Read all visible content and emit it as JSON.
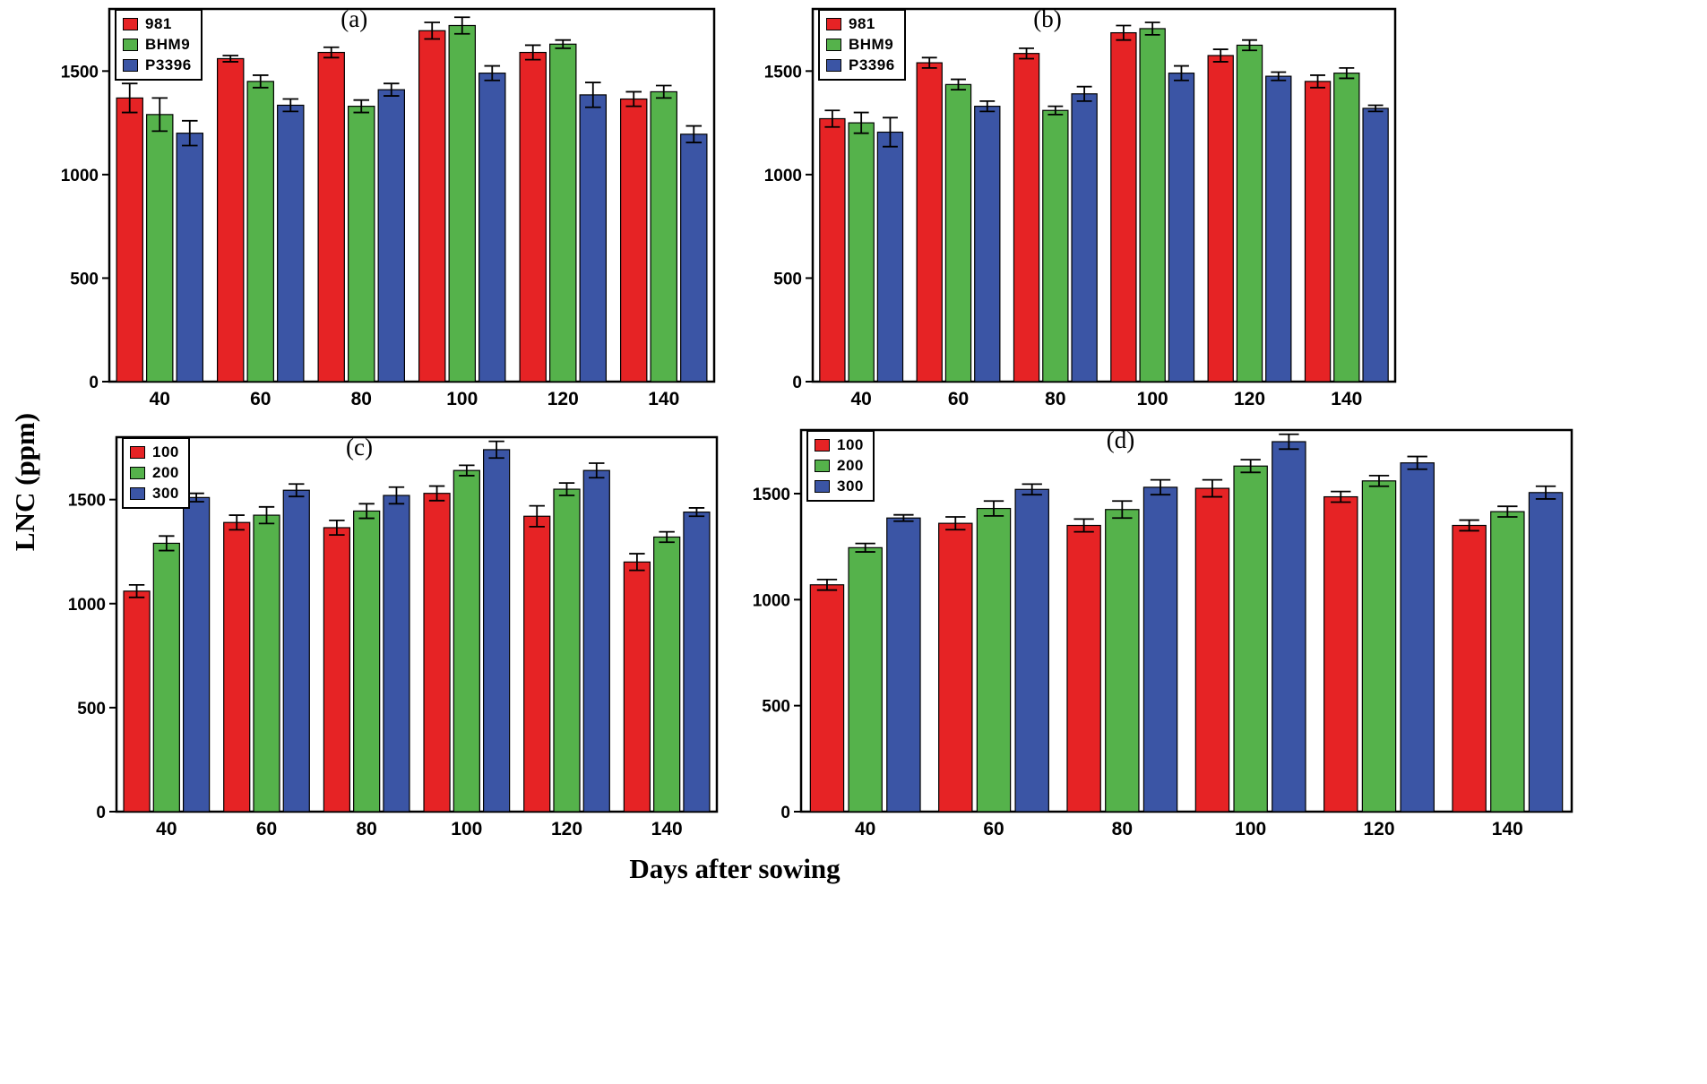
{
  "figure": {
    "ylabel": "LNC (ppm)",
    "xlabel": "Days after sowing"
  },
  "chart_data": [
    {
      "type": "bar",
      "title": "(a)",
      "categories": [
        "40",
        "60",
        "80",
        "100",
        "120",
        "140"
      ],
      "ylim": [
        0,
        1800
      ],
      "yticks": [
        0,
        500,
        1000,
        1500
      ],
      "legend_position": "top-left",
      "grid": false,
      "series": [
        {
          "name": "981",
          "color": "#e62325",
          "values": [
            1370,
            1560,
            1590,
            1695,
            1590,
            1365
          ],
          "errors": [
            70,
            15,
            25,
            40,
            35,
            35
          ]
        },
        {
          "name": "BHM9",
          "color": "#55b24b",
          "values": [
            1290,
            1450,
            1330,
            1720,
            1630,
            1400
          ],
          "errors": [
            80,
            30,
            30,
            40,
            20,
            30
          ]
        },
        {
          "name": "P3396",
          "color": "#3b55a5",
          "values": [
            1200,
            1335,
            1410,
            1490,
            1385,
            1195
          ],
          "errors": [
            60,
            30,
            30,
            35,
            60,
            40
          ]
        }
      ]
    },
    {
      "type": "bar",
      "title": "(b)",
      "categories": [
        "40",
        "60",
        "80",
        "100",
        "120",
        "140"
      ],
      "ylim": [
        0,
        1800
      ],
      "yticks": [
        0,
        500,
        1000,
        1500
      ],
      "legend_position": "top-left",
      "grid": false,
      "series": [
        {
          "name": "981",
          "color": "#e62325",
          "values": [
            1270,
            1540,
            1585,
            1685,
            1575,
            1450
          ],
          "errors": [
            40,
            25,
            25,
            35,
            30,
            30
          ]
        },
        {
          "name": "BHM9",
          "color": "#55b24b",
          "values": [
            1250,
            1435,
            1310,
            1705,
            1625,
            1490
          ],
          "errors": [
            50,
            25,
            20,
            30,
            25,
            25
          ]
        },
        {
          "name": "P3396",
          "color": "#3b55a5",
          "values": [
            1205,
            1330,
            1390,
            1490,
            1475,
            1320
          ],
          "errors": [
            70,
            25,
            35,
            35,
            20,
            15
          ]
        }
      ]
    },
    {
      "type": "bar",
      "title": "(c)",
      "categories": [
        "40",
        "60",
        "80",
        "100",
        "120",
        "140"
      ],
      "ylim": [
        0,
        1800
      ],
      "yticks": [
        0,
        500,
        1000,
        1500
      ],
      "legend_position": "top-left",
      "grid": false,
      "series": [
        {
          "name": "100",
          "color": "#e62325",
          "values": [
            1060,
            1390,
            1365,
            1530,
            1420,
            1200
          ],
          "errors": [
            30,
            35,
            35,
            35,
            50,
            40
          ]
        },
        {
          "name": "200",
          "color": "#55b24b",
          "values": [
            1290,
            1425,
            1445,
            1640,
            1550,
            1320
          ],
          "errors": [
            35,
            40,
            35,
            25,
            30,
            25
          ]
        },
        {
          "name": "300",
          "color": "#3b55a5",
          "values": [
            1510,
            1545,
            1520,
            1740,
            1640,
            1440
          ],
          "errors": [
            20,
            30,
            40,
            40,
            35,
            20
          ]
        }
      ]
    },
    {
      "type": "bar",
      "title": "(d)",
      "categories": [
        "40",
        "60",
        "80",
        "100",
        "120",
        "140"
      ],
      "ylim": [
        0,
        1800
      ],
      "yticks": [
        0,
        500,
        1000,
        1500
      ],
      "legend_position": "top-left",
      "grid": false,
      "series": [
        {
          "name": "100",
          "color": "#e62325",
          "values": [
            1070,
            1360,
            1350,
            1525,
            1485,
            1350
          ],
          "errors": [
            25,
            30,
            30,
            40,
            25,
            25
          ]
        },
        {
          "name": "200",
          "color": "#55b24b",
          "values": [
            1245,
            1430,
            1425,
            1630,
            1560,
            1415
          ],
          "errors": [
            20,
            35,
            40,
            30,
            25,
            25
          ]
        },
        {
          "name": "300",
          "color": "#3b55a5",
          "values": [
            1385,
            1520,
            1530,
            1745,
            1645,
            1505
          ],
          "errors": [
            15,
            25,
            35,
            35,
            30,
            30
          ]
        }
      ]
    }
  ]
}
